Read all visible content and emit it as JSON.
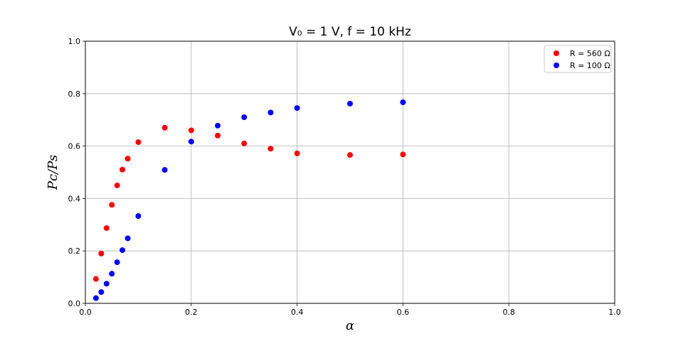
{
  "chart_data": {
    "type": "scatter",
    "title": "V₀ = 1 V,  f = 10 kHz",
    "xlabel": "α",
    "ylabel": "Pc/Ps",
    "xlim": [
      0,
      1
    ],
    "ylim": [
      0,
      1
    ],
    "x_ticks": [
      "0.0",
      "0.2",
      "0.4",
      "0.6",
      "0.8",
      "1.0"
    ],
    "y_ticks": [
      "0.0",
      "0.2",
      "0.4",
      "0.6",
      "0.8",
      "1.0"
    ],
    "grid": true,
    "legend_position": "top-right",
    "series": [
      {
        "name": "R = 560 Ω",
        "color": "#ff0000",
        "points": [
          [
            0.02,
            0.093
          ],
          [
            0.03,
            0.19
          ],
          [
            0.04,
            0.287
          ],
          [
            0.05,
            0.376
          ],
          [
            0.06,
            0.45
          ],
          [
            0.07,
            0.51
          ],
          [
            0.08,
            0.552
          ],
          [
            0.1,
            0.615
          ],
          [
            0.15,
            0.67
          ],
          [
            0.2,
            0.66
          ],
          [
            0.25,
            0.64
          ],
          [
            0.3,
            0.61
          ],
          [
            0.35,
            0.59
          ],
          [
            0.4,
            0.572
          ],
          [
            0.5,
            0.566
          ],
          [
            0.6,
            0.568
          ]
        ]
      },
      {
        "name": "R = 100 Ω",
        "color": "#0000ff",
        "points": [
          [
            0.02,
            0.02
          ],
          [
            0.03,
            0.043
          ],
          [
            0.04,
            0.075
          ],
          [
            0.05,
            0.113
          ],
          [
            0.06,
            0.157
          ],
          [
            0.07,
            0.203
          ],
          [
            0.08,
            0.248
          ],
          [
            0.1,
            0.333
          ],
          [
            0.15,
            0.509
          ],
          [
            0.2,
            0.617
          ],
          [
            0.25,
            0.678
          ],
          [
            0.3,
            0.71
          ],
          [
            0.35,
            0.728
          ],
          [
            0.4,
            0.745
          ],
          [
            0.5,
            0.762
          ],
          [
            0.6,
            0.767
          ]
        ]
      }
    ]
  }
}
